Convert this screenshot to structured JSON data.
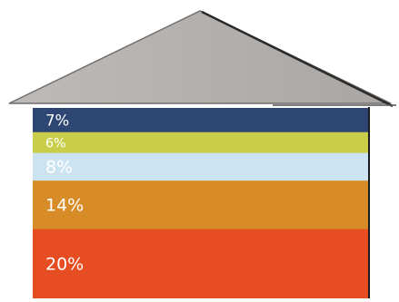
{
  "chart_data": {
    "type": "bar",
    "title": "",
    "layout": "stacked-house",
    "values": [
      7,
      6,
      8,
      14,
      20
    ],
    "labels": [
      "7%",
      "6%",
      "8%",
      "14%",
      "20%"
    ],
    "colors": [
      "#2e4673",
      "#c9cd4a",
      "#cce3f2",
      "#d88c27",
      "#e64d23"
    ],
    "label_colors": [
      "#ffffff",
      "#ffffff",
      "#ffffff",
      "#ffffff",
      "#ffffff"
    ],
    "roof_color": "#b3b0ae",
    "legend": false,
    "grid": false
  }
}
